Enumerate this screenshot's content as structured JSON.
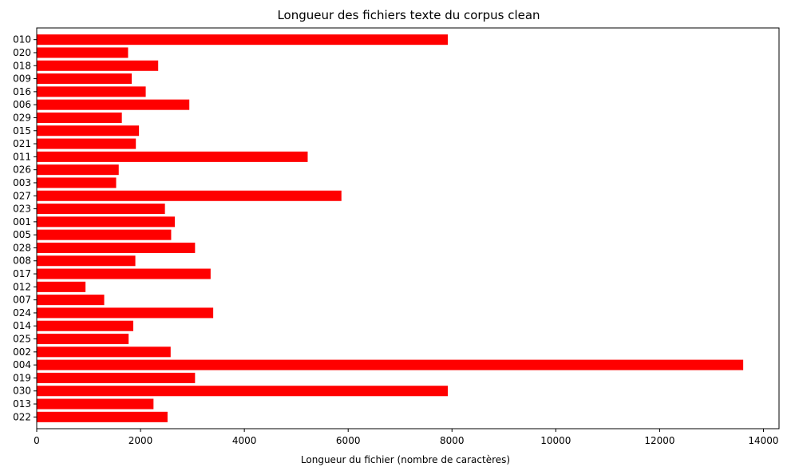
{
  "chart_data": {
    "type": "bar",
    "orientation": "horizontal",
    "title": "Longueur des fichiers texte du corpus clean",
    "xlabel": "Longueur du fichier (nombre de caractères)",
    "ylabel": "",
    "xlim": [
      0,
      14300
    ],
    "xticks": [
      0,
      2000,
      4000,
      6000,
      8000,
      10000,
      12000,
      14000
    ],
    "grid": false,
    "color": "#ff0000",
    "categories": [
      "010",
      "020",
      "018",
      "009",
      "016",
      "006",
      "029",
      "015",
      "021",
      "011",
      "026",
      "003",
      "027",
      "023",
      "001",
      "005",
      "028",
      "008",
      "017",
      "012",
      "007",
      "024",
      "014",
      "025",
      "002",
      "004",
      "019",
      "030",
      "013",
      "022"
    ],
    "values": [
      7920,
      1760,
      2340,
      1830,
      2100,
      2940,
      1640,
      1970,
      1910,
      5220,
      1580,
      1530,
      5870,
      2470,
      2660,
      2590,
      3050,
      1900,
      3350,
      940,
      1300,
      3400,
      1860,
      1770,
      2580,
      13610,
      3050,
      7920,
      2250,
      2520
    ]
  }
}
